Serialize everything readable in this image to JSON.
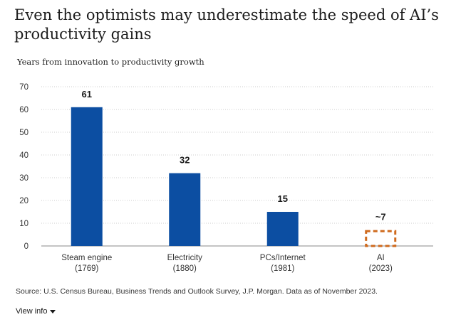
{
  "title": "Even the optimists may underestimate the speed of AI’s productivity gains",
  "subtitle": "Years from innovation to productivity growth",
  "source": "Source: U.S. Census Bureau, Business Trends and Outlook Survey, J.P. Morgan. Data as of November 2023.",
  "view_info": "View info",
  "colors": {
    "bar": "#0c4ea2",
    "projected": "#cf6a1d",
    "grid": "#cccccc"
  },
  "chart_data": {
    "type": "bar",
    "title": "Even the optimists may underestimate the speed of AI’s productivity gains",
    "ylabel": "Years from innovation to productivity growth",
    "xlabel": "",
    "ylim": [
      0,
      70
    ],
    "yticks": [
      0,
      10,
      20,
      30,
      40,
      50,
      60,
      70
    ],
    "grid": true,
    "categories": [
      {
        "name": "Steam engine",
        "year": "(1769)",
        "value": 61,
        "label": "61",
        "style": "solid"
      },
      {
        "name": "Electricity",
        "year": "(1880)",
        "value": 32,
        "label": "32",
        "style": "solid"
      },
      {
        "name": "PCs/Internet",
        "year": "(1981)",
        "value": 15,
        "label": "15",
        "style": "solid"
      },
      {
        "name": "AI",
        "year": "(2023)",
        "value": 7,
        "label": "~7",
        "style": "dashed"
      }
    ]
  }
}
